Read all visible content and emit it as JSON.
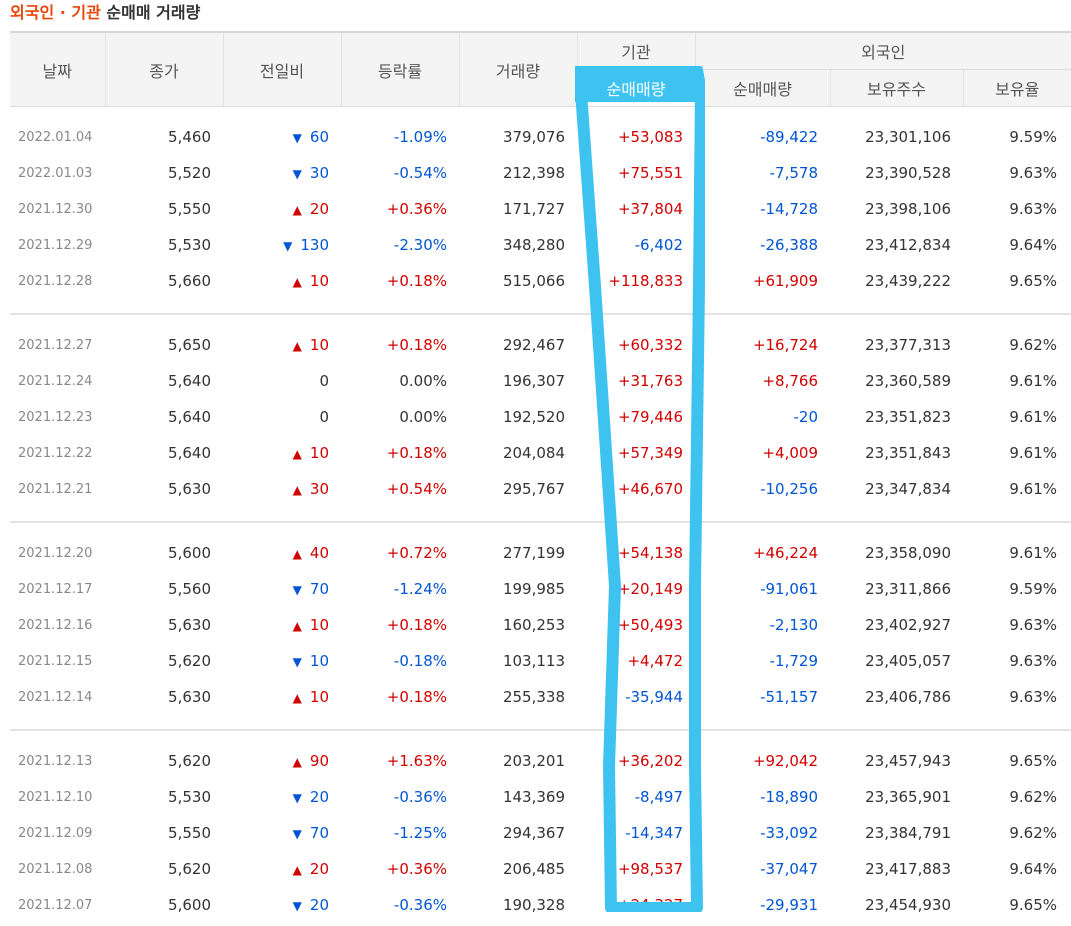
{
  "title": {
    "part1": "외국인 · 기관",
    "part2": "순매매 거래량"
  },
  "headers": {
    "date": "날짜",
    "close": "종가",
    "change": "전일비",
    "rate": "등락률",
    "volume": "거래량",
    "institution": "기관",
    "inst_net": "순매매량",
    "foreign": "외국인",
    "foreign_net": "순매매량",
    "holdings": "보유주수",
    "holding_ratio": "보유율"
  },
  "groups": [
    [
      {
        "date": "2022.01.04",
        "close": "5,460",
        "dir": "down",
        "change": "60",
        "rate": "-1.09%",
        "volume": "379,076",
        "inst": "+53,083",
        "foreign": "-89,422",
        "holdings": "23,301,106",
        "ratio": "9.59%"
      },
      {
        "date": "2022.01.03",
        "close": "5,520",
        "dir": "down",
        "change": "30",
        "rate": "-0.54%",
        "volume": "212,398",
        "inst": "+75,551",
        "foreign": "-7,578",
        "holdings": "23,390,528",
        "ratio": "9.63%"
      },
      {
        "date": "2021.12.30",
        "close": "5,550",
        "dir": "up",
        "change": "20",
        "rate": "+0.36%",
        "volume": "171,727",
        "inst": "+37,804",
        "foreign": "-14,728",
        "holdings": "23,398,106",
        "ratio": "9.63%"
      },
      {
        "date": "2021.12.29",
        "close": "5,530",
        "dir": "down",
        "change": "130",
        "rate": "-2.30%",
        "volume": "348,280",
        "inst": "-6,402",
        "foreign": "-26,388",
        "holdings": "23,412,834",
        "ratio": "9.64%"
      },
      {
        "date": "2021.12.28",
        "close": "5,660",
        "dir": "up",
        "change": "10",
        "rate": "+0.18%",
        "volume": "515,066",
        "inst": "+118,833",
        "foreign": "+61,909",
        "holdings": "23,439,222",
        "ratio": "9.65%"
      }
    ],
    [
      {
        "date": "2021.12.27",
        "close": "5,650",
        "dir": "up",
        "change": "10",
        "rate": "+0.18%",
        "volume": "292,467",
        "inst": "+60,332",
        "foreign": "+16,724",
        "holdings": "23,377,313",
        "ratio": "9.62%"
      },
      {
        "date": "2021.12.24",
        "close": "5,640",
        "dir": "none",
        "change": "0",
        "rate": "0.00%",
        "volume": "196,307",
        "inst": "+31,763",
        "foreign": "+8,766",
        "holdings": "23,360,589",
        "ratio": "9.61%"
      },
      {
        "date": "2021.12.23",
        "close": "5,640",
        "dir": "none",
        "change": "0",
        "rate": "0.00%",
        "volume": "192,520",
        "inst": "+79,446",
        "foreign": "-20",
        "holdings": "23,351,823",
        "ratio": "9.61%"
      },
      {
        "date": "2021.12.22",
        "close": "5,640",
        "dir": "up",
        "change": "10",
        "rate": "+0.18%",
        "volume": "204,084",
        "inst": "+57,349",
        "foreign": "+4,009",
        "holdings": "23,351,843",
        "ratio": "9.61%"
      },
      {
        "date": "2021.12.21",
        "close": "5,630",
        "dir": "up",
        "change": "30",
        "rate": "+0.54%",
        "volume": "295,767",
        "inst": "+46,670",
        "foreign": "-10,256",
        "holdings": "23,347,834",
        "ratio": "9.61%"
      }
    ],
    [
      {
        "date": "2021.12.20",
        "close": "5,600",
        "dir": "up",
        "change": "40",
        "rate": "+0.72%",
        "volume": "277,199",
        "inst": "+54,138",
        "foreign": "+46,224",
        "holdings": "23,358,090",
        "ratio": "9.61%"
      },
      {
        "date": "2021.12.17",
        "close": "5,560",
        "dir": "down",
        "change": "70",
        "rate": "-1.24%",
        "volume": "199,985",
        "inst": "+20,149",
        "foreign": "-91,061",
        "holdings": "23,311,866",
        "ratio": "9.59%"
      },
      {
        "date": "2021.12.16",
        "close": "5,630",
        "dir": "up",
        "change": "10",
        "rate": "+0.18%",
        "volume": "160,253",
        "inst": "+50,493",
        "foreign": "-2,130",
        "holdings": "23,402,927",
        "ratio": "9.63%"
      },
      {
        "date": "2021.12.15",
        "close": "5,620",
        "dir": "down",
        "change": "10",
        "rate": "-0.18%",
        "volume": "103,113",
        "inst": "+4,472",
        "foreign": "-1,729",
        "holdings": "23,405,057",
        "ratio": "9.63%"
      },
      {
        "date": "2021.12.14",
        "close": "5,630",
        "dir": "up",
        "change": "10",
        "rate": "+0.18%",
        "volume": "255,338",
        "inst": "-35,944",
        "foreign": "-51,157",
        "holdings": "23,406,786",
        "ratio": "9.63%"
      }
    ],
    [
      {
        "date": "2021.12.13",
        "close": "5,620",
        "dir": "up",
        "change": "90",
        "rate": "+1.63%",
        "volume": "203,201",
        "inst": "+36,202",
        "foreign": "+92,042",
        "holdings": "23,457,943",
        "ratio": "9.65%"
      },
      {
        "date": "2021.12.10",
        "close": "5,530",
        "dir": "down",
        "change": "20",
        "rate": "-0.36%",
        "volume": "143,369",
        "inst": "-8,497",
        "foreign": "-18,890",
        "holdings": "23,365,901",
        "ratio": "9.62%"
      },
      {
        "date": "2021.12.09",
        "close": "5,550",
        "dir": "down",
        "change": "70",
        "rate": "-1.25%",
        "volume": "294,367",
        "inst": "-14,347",
        "foreign": "-33,092",
        "holdings": "23,384,791",
        "ratio": "9.62%"
      },
      {
        "date": "2021.12.08",
        "close": "5,620",
        "dir": "up",
        "change": "20",
        "rate": "+0.36%",
        "volume": "206,485",
        "inst": "+98,537",
        "foreign": "-37,047",
        "holdings": "23,417,883",
        "ratio": "9.64%"
      },
      {
        "date": "2021.12.07",
        "close": "5,600",
        "dir": "down",
        "change": "20",
        "rate": "-0.36%",
        "volume": "190,328",
        "inst": "+24,327",
        "foreign": "-29,931",
        "holdings": "23,454,930",
        "ratio": "9.65%"
      }
    ]
  ],
  "colors": {
    "up": "#d10000",
    "down": "#0055d4",
    "highlight": "#3ec3f0"
  },
  "icons": {
    "up_arrow": "▲",
    "down_arrow": "▼"
  }
}
